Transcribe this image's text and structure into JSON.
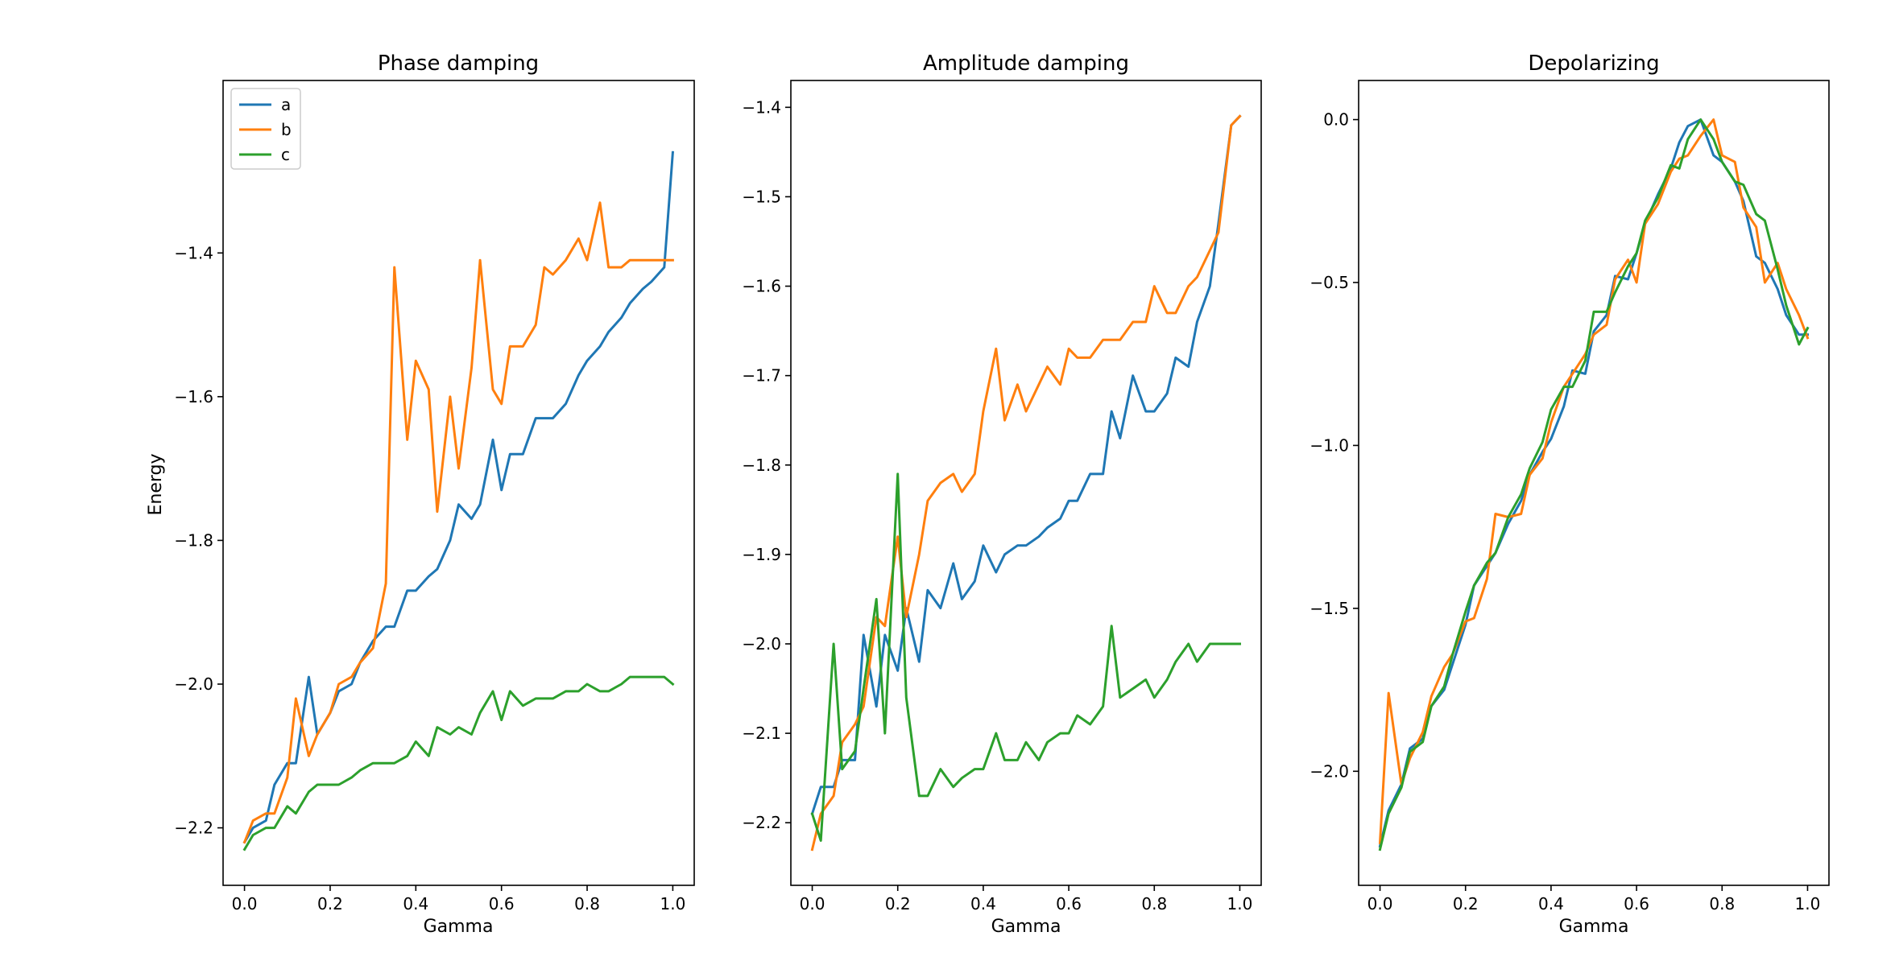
{
  "figure": {
    "colors": {
      "a": "#1f77b4",
      "b": "#ff7f0e",
      "c": "#2ca02c"
    }
  },
  "chart_data": [
    {
      "type": "line",
      "title": "Phase damping",
      "xlabel": "Gamma",
      "ylabel": "Energy",
      "xlim": [
        -0.05,
        1.05
      ],
      "ylim": [
        -2.28,
        -1.16
      ],
      "xticks": [
        0.0,
        0.2,
        0.4,
        0.6,
        0.8,
        1.0
      ],
      "xtick_labels": [
        "0.0",
        "0.2",
        "0.4",
        "0.6",
        "0.8",
        "1.0"
      ],
      "yticks": [
        -2.2,
        -2.0,
        -1.8,
        -1.6,
        -1.4
      ],
      "ytick_labels": [
        "−2.2",
        "−2.0",
        "−1.8",
        "−1.6",
        "−1.4"
      ],
      "legend": {
        "position": "top-left",
        "entries": [
          "a",
          "b",
          "c"
        ]
      },
      "x": [
        0.0,
        0.02,
        0.05,
        0.07,
        0.1,
        0.12,
        0.15,
        0.17,
        0.2,
        0.22,
        0.25,
        0.27,
        0.3,
        0.33,
        0.35,
        0.38,
        0.4,
        0.43,
        0.45,
        0.48,
        0.5,
        0.53,
        0.55,
        0.58,
        0.6,
        0.62,
        0.65,
        0.68,
        0.7,
        0.72,
        0.75,
        0.78,
        0.8,
        0.83,
        0.85,
        0.88,
        0.9,
        0.93,
        0.95,
        0.98,
        1.0
      ],
      "series": [
        {
          "name": "a",
          "values": [
            -2.22,
            -2.2,
            -2.19,
            -2.14,
            -2.11,
            -2.11,
            -1.99,
            -2.07,
            -2.04,
            -2.01,
            -2.0,
            -1.97,
            -1.94,
            -1.92,
            -1.92,
            -1.87,
            -1.87,
            -1.85,
            -1.84,
            -1.8,
            -1.75,
            -1.77,
            -1.75,
            -1.66,
            -1.73,
            -1.68,
            -1.68,
            -1.63,
            -1.63,
            -1.63,
            -1.61,
            -1.57,
            -1.55,
            -1.53,
            -1.51,
            -1.49,
            -1.47,
            -1.45,
            -1.44,
            -1.42,
            -1.26
          ]
        },
        {
          "name": "b",
          "values": [
            -2.22,
            -2.19,
            -2.18,
            -2.18,
            -2.13,
            -2.02,
            -2.1,
            -2.07,
            -2.04,
            -2.0,
            -1.99,
            -1.97,
            -1.95,
            -1.86,
            -1.42,
            -1.66,
            -1.55,
            -1.59,
            -1.76,
            -1.6,
            -1.7,
            -1.56,
            -1.41,
            -1.59,
            -1.61,
            -1.53,
            -1.53,
            -1.5,
            -1.42,
            -1.43,
            -1.41,
            -1.38,
            -1.41,
            -1.33,
            -1.42,
            -1.42,
            -1.41,
            -1.41,
            -1.41,
            -1.41,
            -1.41
          ]
        },
        {
          "name": "c",
          "values": [
            -2.23,
            -2.21,
            -2.2,
            -2.2,
            -2.17,
            -2.18,
            -2.15,
            -2.14,
            -2.14,
            -2.14,
            -2.13,
            -2.12,
            -2.11,
            -2.11,
            -2.11,
            -2.1,
            -2.08,
            -2.1,
            -2.06,
            -2.07,
            -2.06,
            -2.07,
            -2.04,
            -2.01,
            -2.05,
            -2.01,
            -2.03,
            -2.02,
            -2.02,
            -2.02,
            -2.01,
            -2.01,
            -2.0,
            -2.01,
            -2.01,
            -2.0,
            -1.99,
            -1.99,
            -1.99,
            -1.99,
            -2.0
          ]
        }
      ]
    },
    {
      "type": "line",
      "title": "Amplitude damping",
      "xlabel": "Gamma",
      "ylabel": "",
      "xlim": [
        -0.05,
        1.05
      ],
      "ylim": [
        -2.27,
        -1.37
      ],
      "xticks": [
        0.0,
        0.2,
        0.4,
        0.6,
        0.8,
        1.0
      ],
      "xtick_labels": [
        "0.0",
        "0.2",
        "0.4",
        "0.6",
        "0.8",
        "1.0"
      ],
      "yticks": [
        -2.2,
        -2.1,
        -2.0,
        -1.9,
        -1.8,
        -1.7,
        -1.6,
        -1.5,
        -1.4
      ],
      "ytick_labels": [
        "−2.2",
        "−2.1",
        "−2.0",
        "−1.9",
        "−1.8",
        "−1.7",
        "−1.6",
        "−1.5",
        "−1.4"
      ],
      "x": [
        0.0,
        0.02,
        0.05,
        0.07,
        0.1,
        0.12,
        0.15,
        0.17,
        0.2,
        0.22,
        0.25,
        0.27,
        0.3,
        0.33,
        0.35,
        0.38,
        0.4,
        0.43,
        0.45,
        0.48,
        0.5,
        0.53,
        0.55,
        0.58,
        0.6,
        0.62,
        0.65,
        0.68,
        0.7,
        0.72,
        0.75,
        0.78,
        0.8,
        0.83,
        0.85,
        0.88,
        0.9,
        0.93,
        0.95,
        0.98,
        1.0
      ],
      "series": [
        {
          "name": "a",
          "values": [
            -2.19,
            -2.16,
            -2.16,
            -2.13,
            -2.13,
            -1.99,
            -2.07,
            -1.99,
            -2.03,
            -1.96,
            -2.02,
            -1.94,
            -1.96,
            -1.91,
            -1.95,
            -1.93,
            -1.89,
            -1.92,
            -1.9,
            -1.89,
            -1.89,
            -1.88,
            -1.87,
            -1.86,
            -1.84,
            -1.84,
            -1.81,
            -1.81,
            -1.74,
            -1.77,
            -1.7,
            -1.74,
            -1.74,
            -1.72,
            -1.68,
            -1.69,
            -1.64,
            -1.6,
            -1.53,
            -1.42,
            -1.41
          ]
        },
        {
          "name": "b",
          "values": [
            -2.23,
            -2.19,
            -2.17,
            -2.11,
            -2.09,
            -2.07,
            -1.97,
            -1.98,
            -1.88,
            -1.97,
            -1.9,
            -1.84,
            -1.82,
            -1.81,
            -1.83,
            -1.81,
            -1.74,
            -1.67,
            -1.75,
            -1.71,
            -1.74,
            -1.71,
            -1.69,
            -1.71,
            -1.67,
            -1.68,
            -1.68,
            -1.66,
            -1.66,
            -1.66,
            -1.64,
            -1.64,
            -1.6,
            -1.63,
            -1.63,
            -1.6,
            -1.59,
            -1.56,
            -1.54,
            -1.42,
            -1.41
          ]
        },
        {
          "name": "c",
          "values": [
            -2.19,
            -2.22,
            -2.0,
            -2.14,
            -2.12,
            -2.05,
            -1.95,
            -2.1,
            -1.81,
            -2.06,
            -2.17,
            -2.17,
            -2.14,
            -2.16,
            -2.15,
            -2.14,
            -2.14,
            -2.1,
            -2.13,
            -2.13,
            -2.11,
            -2.13,
            -2.11,
            -2.1,
            -2.1,
            -2.08,
            -2.09,
            -2.07,
            -1.98,
            -2.06,
            -2.05,
            -2.04,
            -2.06,
            -2.04,
            -2.02,
            -2.0,
            -2.02,
            -2.0,
            -2.0,
            -2.0,
            -2.0
          ]
        }
      ]
    },
    {
      "type": "line",
      "title": "Depolarizing",
      "xlabel": "Gamma",
      "ylabel": "",
      "xlim": [
        -0.05,
        1.05
      ],
      "ylim": [
        -2.35,
        0.12
      ],
      "xticks": [
        0.0,
        0.2,
        0.4,
        0.6,
        0.8,
        1.0
      ],
      "xtick_labels": [
        "0.0",
        "0.2",
        "0.4",
        "0.6",
        "0.8",
        "1.0"
      ],
      "yticks": [
        -2.0,
        -1.5,
        -1.0,
        -0.5,
        0.0
      ],
      "ytick_labels": [
        "−2.0",
        "−1.5",
        "−1.0",
        "−0.5",
        "0.0"
      ],
      "x": [
        0.0,
        0.02,
        0.05,
        0.07,
        0.1,
        0.12,
        0.15,
        0.17,
        0.2,
        0.22,
        0.25,
        0.27,
        0.3,
        0.33,
        0.35,
        0.38,
        0.4,
        0.43,
        0.45,
        0.48,
        0.5,
        0.53,
        0.55,
        0.58,
        0.6,
        0.62,
        0.65,
        0.68,
        0.7,
        0.72,
        0.75,
        0.78,
        0.8,
        0.83,
        0.85,
        0.88,
        0.9,
        0.93,
        0.95,
        0.98,
        1.0
      ],
      "series": [
        {
          "name": "a",
          "values": [
            -2.23,
            -2.12,
            -2.04,
            -1.93,
            -1.9,
            -1.8,
            -1.75,
            -1.67,
            -1.55,
            -1.43,
            -1.37,
            -1.33,
            -1.24,
            -1.17,
            -1.09,
            -1.02,
            -0.98,
            -0.88,
            -0.77,
            -0.78,
            -0.65,
            -0.6,
            -0.48,
            -0.49,
            -0.41,
            -0.32,
            -0.23,
            -0.15,
            -0.07,
            -0.02,
            0.0,
            -0.11,
            -0.13,
            -0.19,
            -0.25,
            -0.42,
            -0.44,
            -0.52,
            -0.6,
            -0.66,
            -0.66
          ]
        },
        {
          "name": "b",
          "values": [
            -2.22,
            -1.76,
            -2.04,
            -1.96,
            -1.88,
            -1.77,
            -1.68,
            -1.64,
            -1.54,
            -1.53,
            -1.41,
            -1.21,
            -1.22,
            -1.21,
            -1.09,
            -1.04,
            -0.93,
            -0.82,
            -0.78,
            -0.72,
            -0.66,
            -0.63,
            -0.49,
            -0.43,
            -0.5,
            -0.32,
            -0.26,
            -0.16,
            -0.12,
            -0.11,
            -0.05,
            0.0,
            -0.11,
            -0.13,
            -0.27,
            -0.33,
            -0.5,
            -0.44,
            -0.52,
            -0.6,
            -0.67
          ]
        },
        {
          "name": "c",
          "values": [
            -2.24,
            -2.13,
            -2.05,
            -1.94,
            -1.91,
            -1.8,
            -1.74,
            -1.64,
            -1.51,
            -1.43,
            -1.36,
            -1.33,
            -1.22,
            -1.15,
            -1.07,
            -0.99,
            -0.89,
            -0.82,
            -0.82,
            -0.74,
            -0.59,
            -0.59,
            -0.53,
            -0.45,
            -0.41,
            -0.31,
            -0.24,
            -0.14,
            -0.15,
            -0.06,
            0.0,
            -0.06,
            -0.13,
            -0.19,
            -0.2,
            -0.29,
            -0.31,
            -0.46,
            -0.57,
            -0.69,
            -0.64
          ]
        }
      ]
    }
  ]
}
